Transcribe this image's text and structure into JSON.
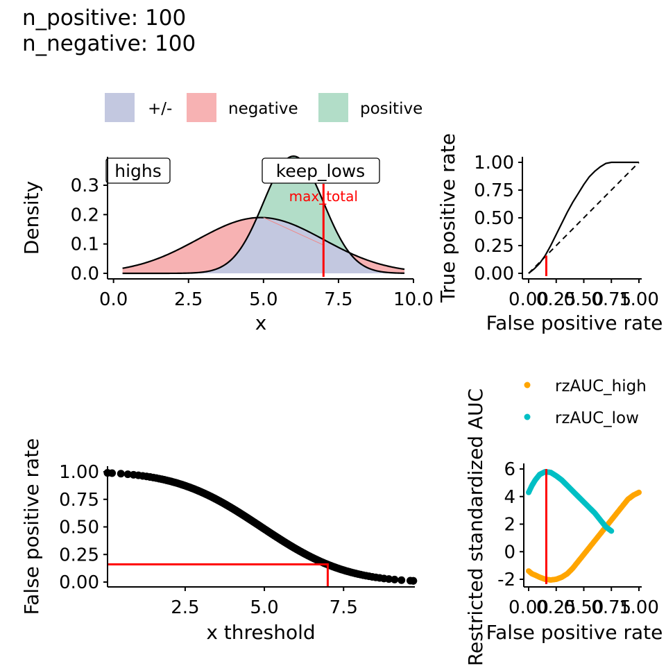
{
  "header": {
    "line1": "n_positive: 100",
    "line2": "n_negative: 100"
  },
  "colors": {
    "pm": "#C3C8E0",
    "negative": "#F7B2B3",
    "positive": "#B2DDC8",
    "threshold_line": "#FF0000",
    "rzAUC_high": "#FFA500",
    "rzAUC_low": "#00BFC4"
  },
  "chart_data": [
    {
      "id": "density",
      "type": "area",
      "xlabel": "x",
      "ylabel": "Density",
      "xlim": [
        -0.2,
        10.0
      ],
      "ylim": [
        -0.01,
        0.39
      ],
      "xticks": [
        0.0,
        2.5,
        5.0,
        7.5,
        10.0
      ],
      "xtick_labels": [
        "0.0",
        "2.5",
        "5.0",
        "7.5",
        "10.0"
      ],
      "yticks": [
        0.0,
        0.1,
        0.2,
        0.3
      ],
      "ytick_labels": [
        "0.0",
        "0.1",
        "0.2",
        "0.3"
      ],
      "legend": {
        "placement": "top",
        "items": [
          "+/-",
          "negative",
          "positive"
        ]
      },
      "series": [
        {
          "name": "negative",
          "distribution": "normal",
          "mean": 4.9,
          "sd": 2.1,
          "x_range": [
            0.3,
            9.7
          ]
        },
        {
          "name": "positive",
          "distribution": "normal",
          "mean": 6.0,
          "sd": 1.0,
          "x_range": [
            0.3,
            9.7
          ]
        }
      ],
      "threshold": 7.0,
      "threshold_label": "max_total",
      "annotations": [
        "highs",
        "keep_lows"
      ]
    },
    {
      "id": "roc",
      "type": "line",
      "xlabel": "False positive rate",
      "ylabel": "True positive rate",
      "xlim": [
        -0.05,
        1.03
      ],
      "ylim": [
        -0.05,
        1.03
      ],
      "xticks": [
        0.0,
        0.25,
        0.5,
        0.75,
        1.0
      ],
      "xtick_labels": [
        "0.00",
        "0.25",
        "0.50",
        "0.75",
        "1.00"
      ],
      "yticks": [
        0.0,
        0.25,
        0.5,
        0.75,
        1.0
      ],
      "ytick_labels": [
        "0.00",
        "0.25",
        "0.50",
        "0.75",
        "1.00"
      ],
      "series": [
        {
          "name": "roc",
          "x": [
            0.0,
            0.05,
            0.1,
            0.15,
            0.2,
            0.25,
            0.3,
            0.35,
            0.4,
            0.45,
            0.5,
            0.55,
            0.6,
            0.65,
            0.7,
            0.75,
            0.8,
            0.85,
            0.9,
            0.95,
            1.0
          ],
          "y": [
            0.0,
            0.04,
            0.09,
            0.16,
            0.25,
            0.35,
            0.45,
            0.55,
            0.64,
            0.72,
            0.8,
            0.87,
            0.92,
            0.96,
            0.99,
            1.0,
            1.0,
            1.0,
            1.0,
            1.0,
            1.0
          ]
        },
        {
          "name": "diagonal",
          "x": [
            0.0,
            1.0
          ],
          "y": [
            0.0,
            1.0
          ],
          "style": "dashed"
        }
      ],
      "marker": {
        "fpr": 0.16,
        "tpr": 0.16
      }
    },
    {
      "id": "fpr_threshold",
      "type": "scatter",
      "xlabel": "x threshold",
      "ylabel": "False positive rate",
      "xlim": [
        0.05,
        9.75
      ],
      "ylim": [
        -0.05,
        1.05
      ],
      "xticks": [
        2.5,
        5.0,
        7.5
      ],
      "xtick_labels": [
        "2.5",
        "5.0",
        "7.5"
      ],
      "yticks": [
        0.0,
        0.25,
        0.5,
        0.75,
        1.0
      ],
      "ytick_labels": [
        "0.00",
        "0.25",
        "0.50",
        "0.75",
        "1.00"
      ],
      "series": [
        {
          "name": "fpr",
          "x_range": [
            0.05,
            9.7
          ],
          "n_points": 200,
          "curve": "1 - Phi((x - 4.9) / 2.1)"
        }
      ],
      "marker": {
        "threshold": 7.0,
        "fpr": 0.16
      }
    },
    {
      "id": "rzauc",
      "type": "scatter",
      "xlabel": "False positive rate",
      "ylabel": "Restricted standardized AUC",
      "xlim": [
        -0.05,
        1.03
      ],
      "ylim": [
        -2.6,
        6.3
      ],
      "xticks": [
        0.0,
        0.25,
        0.5,
        0.75,
        1.0
      ],
      "xtick_labels": [
        "0.00",
        "0.25",
        "0.50",
        "0.75",
        "1.00"
      ],
      "yticks": [
        -2,
        0,
        2,
        4,
        6
      ],
      "ytick_labels": [
        "-2",
        "0",
        "2",
        "4",
        "6"
      ],
      "legend": {
        "placement": "top",
        "items": [
          "rzAUC_high",
          "rzAUC_low"
        ]
      },
      "series": [
        {
          "name": "rzAUC_high",
          "x": [
            0.0,
            0.03,
            0.06,
            0.1,
            0.15,
            0.2,
            0.25,
            0.3,
            0.35,
            0.4,
            0.45,
            0.5,
            0.55,
            0.6,
            0.65,
            0.7,
            0.75,
            0.8,
            0.85,
            0.9,
            0.95,
            1.0
          ],
          "y": [
            -1.4,
            -1.6,
            -1.7,
            -1.85,
            -2.0,
            -2.05,
            -2.0,
            -1.85,
            -1.6,
            -1.2,
            -0.7,
            -0.2,
            0.3,
            0.8,
            1.3,
            1.8,
            2.3,
            2.8,
            3.3,
            3.8,
            4.1,
            4.3
          ]
        },
        {
          "name": "rzAUC_low",
          "x": [
            0.0,
            0.03,
            0.06,
            0.1,
            0.15,
            0.2,
            0.25,
            0.3,
            0.35,
            0.4,
            0.45,
            0.5,
            0.55,
            0.6,
            0.65,
            0.7,
            0.75
          ],
          "y": [
            4.3,
            4.8,
            5.2,
            5.6,
            5.8,
            5.75,
            5.5,
            5.2,
            4.8,
            4.4,
            4.0,
            3.6,
            3.2,
            2.8,
            2.3,
            1.8,
            1.5
          ]
        }
      ],
      "marker": {
        "fpr": 0.16
      }
    }
  ]
}
